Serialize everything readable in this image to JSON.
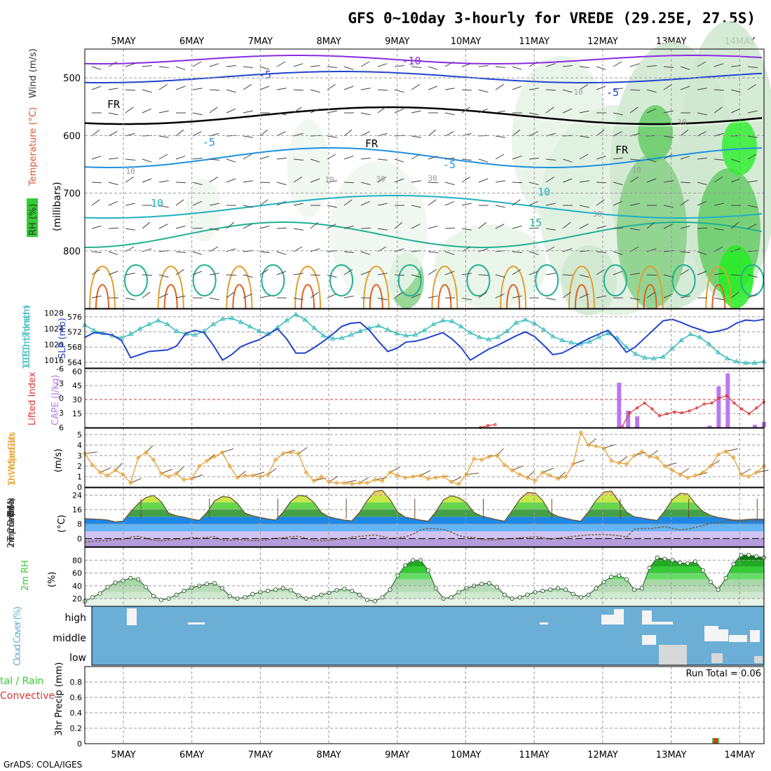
{
  "title": "GFS 0~10day 3-hourly for VREDE (29.25E, 27.5S)",
  "credit": "GrADS: COLA/IGES",
  "days": [
    "5MAY",
    "6MAY",
    "7MAY",
    "8MAY",
    "9MAY",
    "10MAY",
    "11MAY",
    "12MAY",
    "13MAY",
    "14MAY"
  ],
  "colors": {
    "grid": "#aaaaaa",
    "cloud_bg": "#6baed6",
    "rh_green": "#33cc33",
    "thickness": "#33bbbb",
    "slp": "#2244cc",
    "cape": "#bb77ee",
    "li": "#dd3333",
    "wind10": "#e8a030",
    "temp_top": "#33cc33"
  },
  "upper": {
    "ylabel_rh": "RH (%)",
    "ylabel_temp": "Temperature (°C)",
    "ylabel_wind": "Wind (m/s)",
    "ylabel_units": "(millibars)",
    "ylim": [
      900,
      450
    ],
    "yticks": [
      500,
      600,
      700,
      800
    ],
    "ytick_labels": [
      "500",
      "600",
      "700",
      "800"
    ],
    "contour_labels": [
      "-10",
      "-5",
      "FR",
      "FR",
      "FR",
      "-5",
      "-5",
      "-5",
      "10",
      "10",
      "15",
      "10",
      "10",
      "30",
      "30",
      "30",
      "10",
      "30",
      "10"
    ]
  },
  "thickness_slp": {
    "ylabel_thk": "1000-500mb Thcknss (dm)",
    "ylabel_slp": "SLP (mb)",
    "yticks_left": [
      "576",
      "572",
      "568",
      "564"
    ],
    "yticks_right": [
      "1028",
      "1024",
      "1020",
      "1016"
    ],
    "thickness_dm": [
      573.8,
      572.4,
      571.6,
      571.0,
      570.4,
      571.4,
      572.8,
      574.0,
      575.0,
      574.0,
      572.2,
      571.4,
      571.2,
      572.2,
      574.0,
      575.4,
      575.6,
      574.6,
      573.4,
      572.2,
      571.4,
      573.2,
      575.0,
      576.6,
      575.2,
      573.0,
      571.0,
      570.2,
      570.4,
      571.2,
      572.2,
      573.0,
      573.6,
      572.6,
      571.6,
      571.0,
      571.2,
      572.4,
      574.0,
      575.0,
      574.8,
      573.4,
      571.8,
      570.6,
      570.0,
      570.6,
      572.2,
      574.4,
      575.2,
      574.2,
      572.6,
      570.8,
      569.8,
      569.2,
      568.8,
      569.4,
      570.6,
      571.6,
      570.4,
      568.0,
      566.2,
      565.2,
      565.0,
      565.4,
      567.6,
      569.8,
      571.4,
      570.6,
      568.8,
      566.6,
      565.0,
      564.2,
      563.8,
      563.8,
      564.2
    ],
    "slp_mb": [
      1021.8,
      1023.0,
      1022.8,
      1022.4,
      1021.0,
      1016.6,
      1017.4,
      1018.2,
      1018.4,
      1018.6,
      1019.6,
      1022.8,
      1023.6,
      1023.0,
      1019.8,
      1016.0,
      1017.4,
      1019.4,
      1020.4,
      1021.2,
      1022.6,
      1024.0,
      1021.4,
      1017.8,
      1017.8,
      1019.2,
      1020.8,
      1022.6,
      1024.6,
      1025.4,
      1025.6,
      1023.6,
      1020.8,
      1018.2,
      1019.0,
      1020.6,
      1020.8,
      1021.4,
      1022.2,
      1023.0,
      1021.4,
      1019.2,
      1016.0,
      1017.4,
      1018.8,
      1019.8,
      1021.0,
      1022.2,
      1023.2,
      1022.0,
      1019.8,
      1017.4,
      1017.8,
      1019.0,
      1020.4,
      1021.6,
      1022.6,
      1023.6,
      1021.0,
      1018.0,
      1019.4,
      1021.6,
      1023.8,
      1026.0,
      1026.4,
      1025.6,
      1024.6,
      1023.8,
      1023.0,
      1023.4,
      1024.0,
      1025.4,
      1026.2,
      1026.0,
      1026.4
    ]
  },
  "cape_li": {
    "ylabel_li": "Lifted Index",
    "ylabel_cape": "CAPE (J/kg)",
    "yticks_left": [
      "-6",
      "-3",
      "0",
      "3",
      "6"
    ],
    "yticks_right": [
      "60",
      "45",
      "30",
      "15"
    ],
    "cape_jkg": [
      0,
      0,
      0,
      0,
      0,
      0,
      0,
      0,
      0,
      0,
      0,
      0,
      0,
      0,
      0,
      0,
      0,
      0,
      0,
      0,
      0,
      0,
      0,
      0,
      0,
      0,
      0,
      0,
      0,
      0,
      0,
      0,
      0,
      0,
      0,
      0,
      0,
      0,
      0,
      0,
      0,
      0,
      0,
      0,
      0,
      0,
      0,
      0,
      0,
      0,
      0,
      0,
      0,
      0,
      0,
      0,
      0,
      0,
      0,
      48,
      18,
      12,
      0,
      0,
      0,
      0,
      0,
      0,
      0,
      2,
      44,
      58,
      0,
      0,
      3,
      6
    ],
    "li_k": [
      null,
      null,
      null,
      null,
      null,
      null,
      null,
      null,
      null,
      null,
      null,
      null,
      null,
      null,
      null,
      null,
      null,
      null,
      null,
      null,
      null,
      null,
      null,
      null,
      null,
      null,
      null,
      null,
      null,
      null,
      null,
      null,
      null,
      null,
      null,
      null,
      null,
      null,
      null,
      null,
      null,
      null,
      null,
      null,
      null,
      null,
      null,
      null,
      null,
      null,
      null,
      null,
      null,
      6.0,
      5.6,
      5.4,
      null,
      null,
      null,
      null,
      null,
      null,
      null,
      null,
      null,
      null,
      null,
      null,
      null,
      null,
      null,
      null,
      5.8,
      3.0,
      2.0,
      1.0,
      2.2,
      3.6,
      3.2,
      2.8,
      3.0,
      2.6,
      2.0,
      1.2,
      1.0,
      0.0,
      -0.5,
      1.0,
      2.2,
      3.2,
      2.0,
      0.8
    ]
  },
  "wind10": {
    "ylabel": "10m Wind Speed & Barbs",
    "yunit": "(m/s)",
    "yticks": [
      "5",
      "4",
      "3",
      "2",
      "1",
      "0"
    ],
    "speed_ms": [
      3.2,
      2.1,
      1.4,
      1.1,
      1.6,
      1.2,
      0.4,
      2.8,
      3.3,
      2.6,
      1.3,
      1.0,
      1.3,
      0.7,
      0.8,
      2.0,
      2.5,
      2.9,
      3.3,
      2.0,
      0.9,
      1.1,
      1.1,
      1.0,
      1.2,
      2.6,
      3.2,
      3.3,
      3.2,
      1.4,
      0.6,
      1.0,
      0.5,
      0.4,
      0.4,
      0.3,
      0.4,
      0.4,
      0.7,
      0.6,
      1.4,
      1.1,
      0.9,
      1.0,
      1.1,
      0.8,
      0.9,
      1.0,
      0.5,
      0.3,
      1.2,
      2.7,
      2.6,
      2.9,
      3.0,
      2.1,
      1.6,
      1.2,
      0.9,
      0.6,
      1.4,
      1.1,
      0.8,
      1.0,
      2.2,
      5.2,
      4.0,
      3.9,
      3.7,
      2.5,
      2.3,
      2.2,
      3.0,
      3.4,
      2.9,
      2.8,
      2.0,
      1.6,
      1.2,
      0.9,
      1.1,
      1.4,
      2.0,
      3.1,
      3.4,
      2.8,
      1.2,
      1.0,
      1.4,
      2.0
    ]
  },
  "temp2m": {
    "ylabel": "2m Temp 2m DewPt (6hr Min/Max)",
    "yunit": "(°C)",
    "yticks": [
      "24",
      "16",
      "8",
      "0"
    ],
    "temp_c": [
      11.0,
      10.8,
      10.6,
      10.2,
      9.2,
      9.6,
      14.8,
      19.2,
      22.6,
      23.8,
      20.4,
      14.0,
      12.6,
      11.8,
      10.8,
      10.0,
      14.4,
      20.8,
      23.2,
      22.8,
      19.4,
      14.0,
      12.6,
      11.6,
      10.8,
      10.2,
      14.6,
      20.6,
      23.8,
      23.4,
      20.0,
      14.4,
      12.0,
      11.0,
      10.2,
      9.8,
      14.4,
      21.0,
      26.0,
      26.6,
      21.6,
      14.6,
      11.8,
      11.0,
      10.2,
      9.6,
      14.8,
      21.4,
      23.6,
      22.6,
      19.8,
      14.4,
      12.4,
      11.4,
      10.4,
      9.6,
      15.4,
      21.6,
      25.4,
      25.2,
      21.0,
      14.2,
      12.2,
      11.2,
      10.2,
      9.6,
      14.8,
      21.2,
      25.6,
      26.2,
      20.4,
      14.6,
      12.0,
      11.4,
      10.6,
      10.0,
      15.2,
      21.6,
      25.0,
      24.6,
      19.2,
      15.0,
      12.8,
      11.6,
      11.0,
      10.2,
      10.2,
      10.6,
      10.8,
      10.6
    ],
    "dewpt_c": [
      -2.0,
      -1.6,
      -1.2,
      -1.2,
      -0.4,
      -0.6,
      0.8,
      1.2,
      0.2,
      -1.0,
      -1.2,
      -0.8,
      -0.4,
      -0.4,
      0.6,
      0.2,
      0.6,
      1.0,
      -0.8,
      -1.0,
      -0.6,
      -0.8,
      -1.2,
      -1.0,
      -0.6,
      0.2,
      0.4,
      1.0,
      1.2,
      0.0,
      -1.0,
      -1.2,
      -1.0,
      -0.4,
      -0.2,
      0.8,
      1.2,
      1.6,
      2.0,
      1.2,
      0.0,
      0.4,
      1.0,
      2.4,
      4.8,
      5.6,
      5.4,
      5.0,
      3.6,
      1.6,
      0.8,
      0.6,
      -0.4,
      -0.8,
      -0.8,
      -0.2,
      0.0,
      0.4,
      0.6,
      1.0,
      0.6,
      -0.6,
      0.2,
      0.6,
      1.2,
      1.6,
      2.0,
      2.2,
      2.2,
      2.0,
      1.6,
      0.8,
      5.2,
      5.6,
      5.4,
      6.0,
      6.6,
      5.6,
      4.8,
      5.2,
      6.2,
      7.2,
      8.2,
      8.8,
      9.6,
      10.0,
      9.2,
      9.6,
      9.8,
      10.0
    ]
  },
  "rh2m": {
    "ylabel": "2m RH",
    "yunit": "(%)",
    "yticks": [
      "80",
      "60",
      "40",
      "20"
    ],
    "rh_pct": [
      16,
      22,
      28,
      38,
      45,
      48,
      52,
      50,
      38,
      24,
      18,
      20,
      26,
      32,
      37,
      40,
      43,
      44,
      36,
      24,
      20,
      22,
      27,
      30,
      32,
      34,
      36,
      33,
      25,
      20,
      22,
      26,
      29,
      33,
      35,
      32,
      26,
      18,
      16,
      22,
      34,
      56,
      72,
      80,
      80,
      64,
      36,
      20,
      22,
      30,
      36,
      40,
      43,
      44,
      38,
      26,
      20,
      22,
      26,
      30,
      32,
      34,
      36,
      34,
      27,
      22,
      26,
      36,
      46,
      54,
      56,
      50,
      34,
      36,
      68,
      84,
      82,
      80,
      76,
      75,
      78,
      64,
      46,
      34,
      52,
      74,
      88,
      88,
      86,
      84
    ]
  },
  "cloud": {
    "ylabel": "Cloud Cover (%)",
    "levels": [
      "high",
      "middle",
      "low"
    ]
  },
  "precip": {
    "ylabel": "3hr Precip (mm)",
    "legend_total": "tal / Rain",
    "legend_conv": "Convective",
    "run_total": "Run Total = 0.06",
    "yticks": [
      "0.8",
      "0.6",
      "0.4",
      "0.2",
      "0"
    ],
    "ylim": [
      0,
      1.0
    ]
  }
}
